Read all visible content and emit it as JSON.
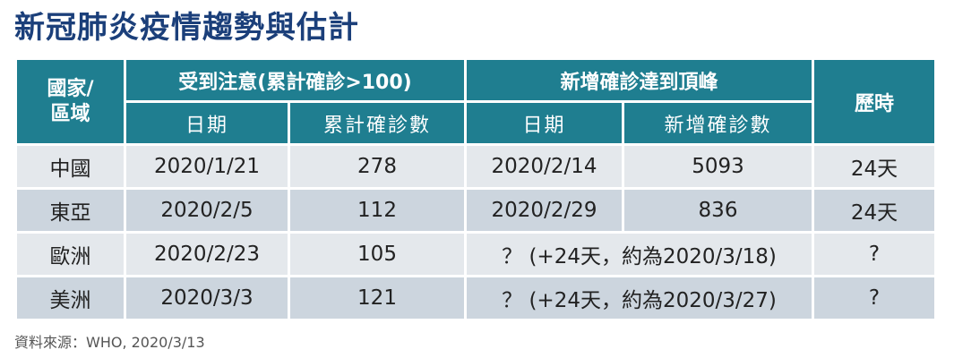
{
  "title": "新冠肺炎疫情趨勢與估計",
  "table": {
    "headers": {
      "region_line1": "國家/",
      "region_line2": "區域",
      "group_attention": "受到注意(累計確診>100)",
      "group_peak": "新增確診達到頂峰",
      "duration": "歷時",
      "sub_date_1": "日期",
      "sub_cumulative": "累計確診數",
      "sub_date_2": "日期",
      "sub_new_cases": "新增確診數"
    },
    "rows": [
      {
        "region": "中國",
        "attention_date": "2020/1/21",
        "cumulative": "278",
        "peak_date": "2020/2/14",
        "new_cases": "5093",
        "duration": "24天"
      },
      {
        "region": "東亞",
        "attention_date": "2020/2/5",
        "cumulative": "112",
        "peak_date": "2020/2/29",
        "new_cases": "836",
        "duration": "24天"
      },
      {
        "region": "歐洲",
        "attention_date": "2020/2/23",
        "cumulative": "105",
        "peak_estimate": "？ (+24天，約為2020/3/18)",
        "duration": "?"
      },
      {
        "region": "美洲",
        "attention_date": "2020/3/3",
        "cumulative": "121",
        "peak_estimate": "？ (+24天，約為2020/3/27)",
        "duration": "?"
      }
    ]
  },
  "source": "資料來源：WHO, 2020/3/13"
}
